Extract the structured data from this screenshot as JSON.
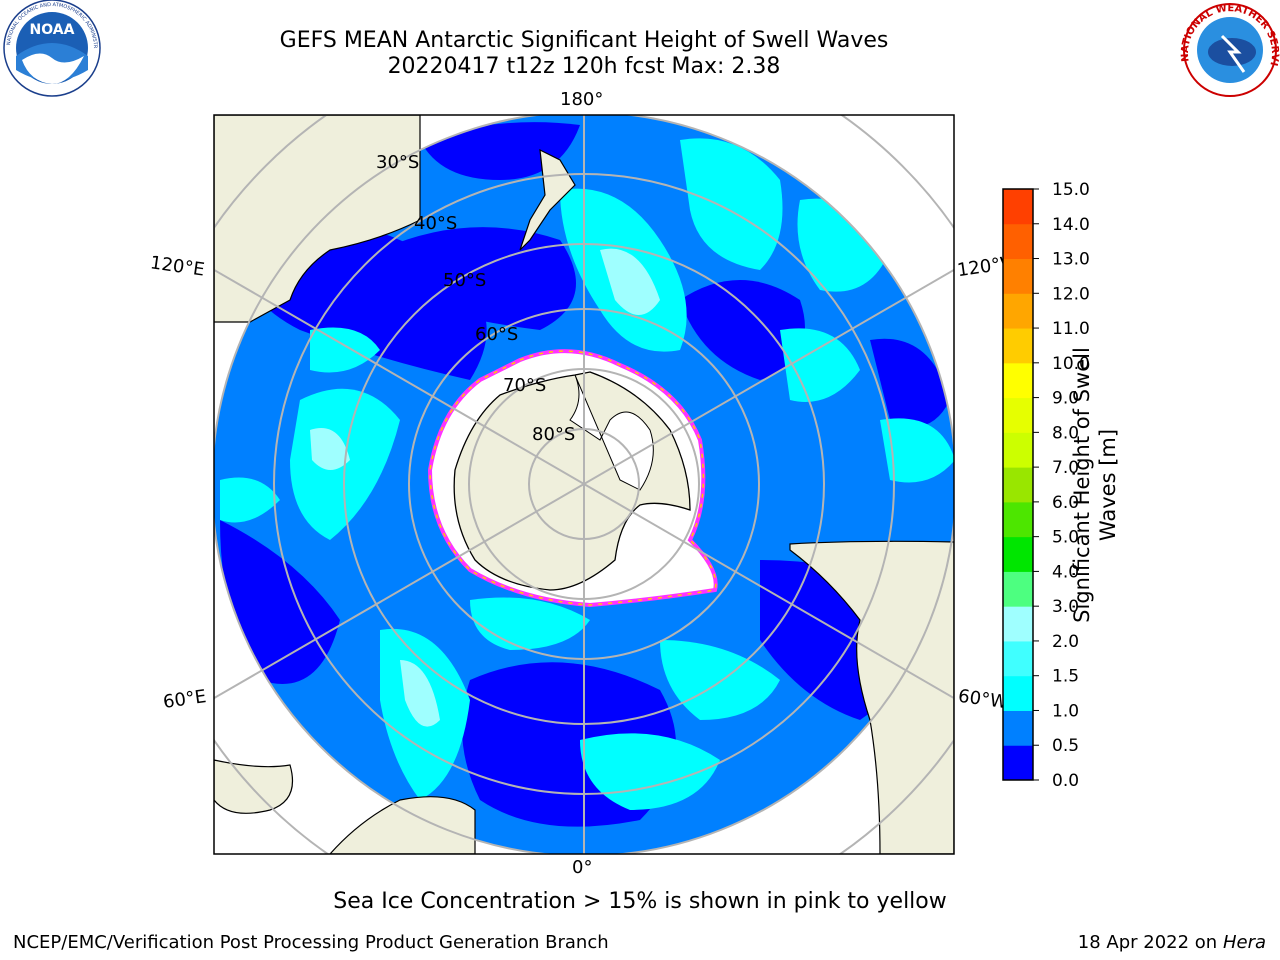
{
  "title": {
    "line1": "GEFS MEAN Antarctic Significant Height of Swell Waves",
    "line2": "20220417 t12z 120h fcst   Max: 2.38"
  },
  "map": {
    "projection": "south-polar-stereographic",
    "lon_labels": {
      "top": "180°",
      "bottom": "0°",
      "left_upper": "120°E",
      "left_lower": "60°E",
      "right_upper": "120°W",
      "right_lower": "60°W"
    },
    "lat_labels": [
      "30°S",
      "40°S",
      "50°S",
      "60°S",
      "70°S",
      "80°S"
    ],
    "colors": {
      "land": "#efefdc",
      "coast": "#000000",
      "grid": "#b4b4b4",
      "ice_edge_pink": "#ff33ff",
      "ice_edge_yellow": "#ffcc00",
      "ice_fill": "#ffffff"
    }
  },
  "colorbar": {
    "ticks": [
      "0.0",
      "0.5",
      "1.0",
      "1.5",
      "2.0",
      "3.0",
      "4.0",
      "5.0",
      "6.0",
      "7.0",
      "8.0",
      "9.0",
      "10.0",
      "11.0",
      "12.0",
      "13.0",
      "14.0",
      "15.0"
    ],
    "colors": [
      "#0000ff",
      "#0080ff",
      "#00ffff",
      "#40ffff",
      "#9fffff",
      "#4dff80",
      "#00e600",
      "#4de600",
      "#99e600",
      "#ccff00",
      "#e6ff00",
      "#ffff00",
      "#ffcc00",
      "#ffa600",
      "#ff8000",
      "#ff6000",
      "#ff4000",
      "#ff0000"
    ],
    "label": "Significant Height of Swell Waves [m]"
  },
  "caption": "Sea Ice Concentration > 15% is shown in pink to yellow",
  "footer": {
    "left": "NCEP/EMC/Verification Post Processing Product Generation Branch",
    "right_prefix": "18 Apr 2022 on ",
    "right_host": "Hera"
  },
  "logos": {
    "noaa": "NOAA",
    "noaa_ring": "NATIONAL OCEANIC AND ATMOSPHERIC ADMINISTRATION · U.S. DEPARTMENT OF COMMERCE",
    "nws_ring": "NATIONAL WEATHER SERVICE"
  }
}
